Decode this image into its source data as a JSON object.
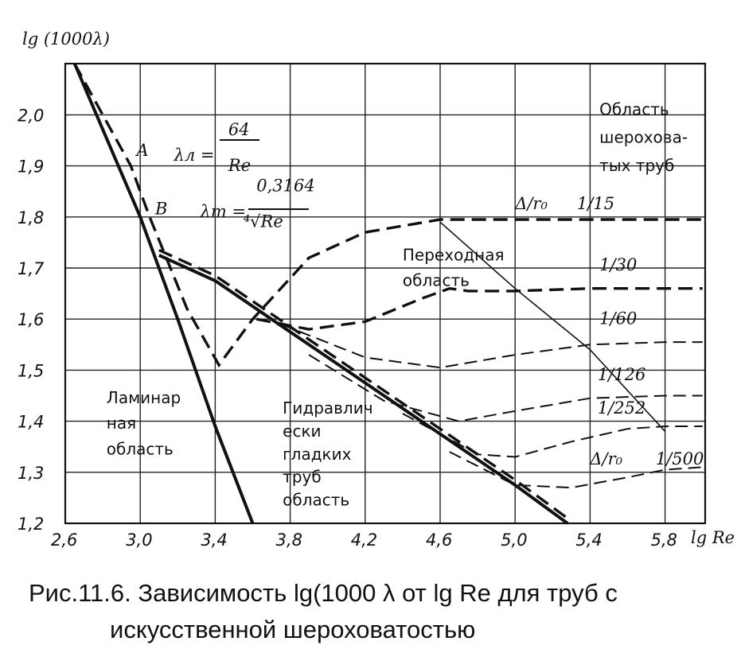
{
  "chart_data": {
    "type": "line",
    "title": "",
    "xlabel": "lg Re",
    "ylabel": "lg (1000λ)",
    "xlim": [
      2.6,
      6.0
    ],
    "ylim": [
      1.2,
      2.1
    ],
    "grid": true,
    "x_ticks": [
      {
        "value": 2.6,
        "label": "2,6"
      },
      {
        "value": 3.0,
        "label": "3,0"
      },
      {
        "value": 3.4,
        "label": "3,4"
      },
      {
        "value": 3.8,
        "label": "3,8"
      },
      {
        "value": 4.2,
        "label": "4,2"
      },
      {
        "value": 4.6,
        "label": "4,6"
      },
      {
        "value": 5.0,
        "label": "5,0"
      },
      {
        "value": 5.4,
        "label": "5,4"
      },
      {
        "value": 5.8,
        "label": "5,8"
      }
    ],
    "y_ticks": [
      {
        "value": 1.2,
        "label": "1,2"
      },
      {
        "value": 1.3,
        "label": "1,3"
      },
      {
        "value": 1.4,
        "label": "1,4"
      },
      {
        "value": 1.5,
        "label": "1,5"
      },
      {
        "value": 1.6,
        "label": "1,6"
      },
      {
        "value": 1.7,
        "label": "1,7"
      },
      {
        "value": 1.8,
        "label": "1,8"
      },
      {
        "value": 1.9,
        "label": "1,9"
      },
      {
        "value": 2.0,
        "label": "2,0"
      }
    ],
    "series": [
      {
        "key": "laminar",
        "style": "solid-thick",
        "x": [
          2.65,
          3.0,
          3.2,
          3.4,
          3.6
        ],
        "y": [
          2.1,
          1.8,
          1.6,
          1.39,
          1.2
        ]
      },
      {
        "key": "smooth",
        "style": "solid-thick",
        "x": [
          3.1,
          3.4,
          3.8,
          4.2,
          4.6,
          5.0,
          5.28
        ],
        "y": [
          1.725,
          1.675,
          1.575,
          1.475,
          1.375,
          1.275,
          1.2
        ]
      },
      {
        "key": "boundary",
        "style": "solid-thin",
        "x": [
          4.6,
          5.0,
          5.4,
          5.8
        ],
        "y": [
          1.79,
          1.66,
          1.54,
          1.38
        ]
      },
      {
        "key": "r15",
        "style": "dash-thick",
        "x": [
          2.65,
          2.95,
          3.05,
          3.25,
          3.42,
          3.6,
          3.9,
          4.2,
          4.6,
          5.0,
          5.4,
          5.8,
          6.0
        ],
        "y": [
          2.1,
          1.9,
          1.8,
          1.62,
          1.51,
          1.6,
          1.72,
          1.77,
          1.795,
          1.795,
          1.795,
          1.795,
          1.795
        ]
      },
      {
        "key": "r30",
        "style": "dash-thick",
        "x": [
          3.62,
          3.9,
          4.2,
          4.5,
          4.65,
          4.75,
          5.0,
          5.4,
          5.8,
          6.0
        ],
        "y": [
          1.6,
          1.58,
          1.595,
          1.64,
          1.66,
          1.655,
          1.655,
          1.66,
          1.66,
          1.66
        ]
      },
      {
        "key": "r60",
        "style": "dash-thin",
        "x": [
          3.75,
          4.2,
          4.6,
          5.0,
          5.4,
          5.8,
          6.0
        ],
        "y": [
          1.59,
          1.525,
          1.505,
          1.53,
          1.55,
          1.555,
          1.555
        ]
      },
      {
        "key": "r126",
        "style": "dash-thin",
        "x": [
          3.9,
          4.3,
          4.7,
          5.0,
          5.4,
          5.8,
          6.0
        ],
        "y": [
          1.53,
          1.44,
          1.4,
          1.42,
          1.445,
          1.45,
          1.45
        ]
      },
      {
        "key": "r252",
        "style": "dash-thin",
        "x": [
          4.4,
          4.8,
          5.0,
          5.3,
          5.6,
          5.8,
          6.0
        ],
        "y": [
          1.415,
          1.335,
          1.33,
          1.36,
          1.385,
          1.39,
          1.39
        ]
      },
      {
        "key": "r500",
        "style": "dash-thin",
        "x": [
          4.65,
          5.0,
          5.3,
          5.6,
          5.8,
          6.0
        ],
        "y": [
          1.34,
          1.275,
          1.27,
          1.29,
          1.305,
          1.31
        ]
      },
      {
        "key": "smooth-dash",
        "style": "dash-thick",
        "x": [
          3.1,
          3.4,
          3.8,
          4.2,
          4.6,
          5.0,
          5.28
        ],
        "y": [
          1.735,
          1.685,
          1.585,
          1.485,
          1.385,
          1.285,
          1.21
        ]
      }
    ],
    "annotations": [
      {
        "key": "A",
        "text": "A",
        "x": 2.98,
        "y": 1.92
      },
      {
        "key": "B",
        "text": "B",
        "x": 3.08,
        "y": 1.805
      },
      {
        "key": "lam_formula_lhs",
        "text": "λл =",
        "x": 3.18,
        "y": 1.91
      },
      {
        "key": "lam_num",
        "text": "64",
        "x": 3.47,
        "y": 1.96
      },
      {
        "key": "lam_den",
        "text": "Re",
        "x": 3.47,
        "y": 1.89
      },
      {
        "key": "turb_formula_lhs",
        "text": "λт =",
        "x": 3.32,
        "y": 1.8
      },
      {
        "key": "turb_num",
        "text": "0,3164",
        "x": 3.62,
        "y": 1.85
      },
      {
        "key": "turb_den",
        "text": "⁴√Re",
        "x": 3.55,
        "y": 1.78
      },
      {
        "key": "rough_region_1",
        "text": "Область",
        "x": 5.45,
        "y": 2.0
      },
      {
        "key": "rough_region_2",
        "text": "шерохова-",
        "x": 5.45,
        "y": 1.945
      },
      {
        "key": "rough_region_3",
        "text": "тых труб",
        "x": 5.45,
        "y": 1.89
      },
      {
        "key": "transition_1",
        "text": "Переходная",
        "x": 4.4,
        "y": 1.715
      },
      {
        "key": "transition_2",
        "text": "область",
        "x": 4.4,
        "y": 1.665
      },
      {
        "key": "laminar_1",
        "text": "Ламинар",
        "x": 2.82,
        "y": 1.435
      },
      {
        "key": "laminar_2",
        "text": "ная",
        "x": 2.82,
        "y": 1.385
      },
      {
        "key": "laminar_3",
        "text": "область",
        "x": 2.82,
        "y": 1.335
      },
      {
        "key": "smooth_1",
        "text": "Гидравлич",
        "x": 3.76,
        "y": 1.415
      },
      {
        "key": "smooth_2",
        "text": "ески",
        "x": 3.76,
        "y": 1.37
      },
      {
        "key": "smooth_3",
        "text": "гладких",
        "x": 3.76,
        "y": 1.325
      },
      {
        "key": "smooth_4",
        "text": "труб",
        "x": 3.76,
        "y": 1.28
      },
      {
        "key": "smooth_5",
        "text": "область",
        "x": 3.76,
        "y": 1.235
      },
      {
        "key": "delta_ro_top",
        "text": "Δ/r₀",
        "x": 5.0,
        "y": 1.815
      },
      {
        "key": "r15_label",
        "text": "1/15",
        "x": 5.33,
        "y": 1.815
      },
      {
        "key": "r30_label",
        "text": "1/30",
        "x": 5.45,
        "y": 1.695
      },
      {
        "key": "r60_label",
        "text": "1/60",
        "x": 5.45,
        "y": 1.59
      },
      {
        "key": "r126_label",
        "text": "1/126",
        "x": 5.44,
        "y": 1.48
      },
      {
        "key": "r252_label",
        "text": "1/252",
        "x": 5.44,
        "y": 1.415
      },
      {
        "key": "delta_ro_bottom",
        "text": "Δ/r₀",
        "x": 5.4,
        "y": 1.315
      },
      {
        "key": "r500_label",
        "text": "1/500",
        "x": 5.75,
        "y": 1.315
      }
    ]
  },
  "axis_titles": {
    "y": "lg (1000λ)",
    "x": "lg Re"
  },
  "caption": {
    "line1": "Рис.11.6. Зависимость lg(1000 λ от lg Re для труб с",
    "line2": "искусственной  шероховатостью"
  }
}
